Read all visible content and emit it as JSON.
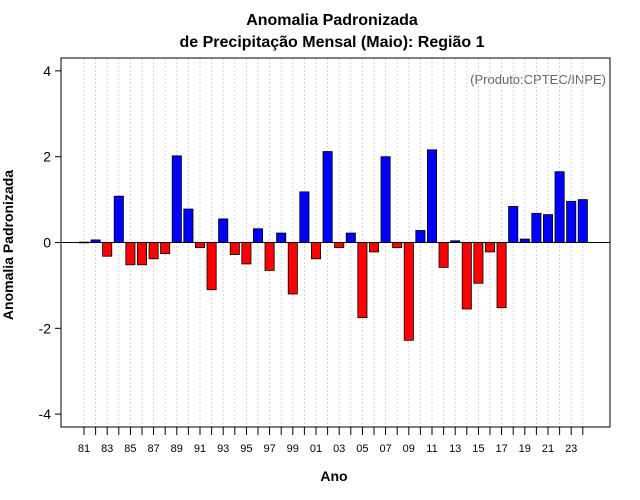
{
  "chart_data": {
    "type": "bar",
    "title": "Anomalia Padronizada",
    "subtitle": "de Precipitação Mensal (Maio): Região 1",
    "xlabel": "Ano",
    "ylabel": "Anomalia Padronizada",
    "annotation": "(Produto:CPTEC/INPE)",
    "ylim": [
      -4.3,
      4.3
    ],
    "yticks": [
      -4,
      -2,
      0,
      2,
      4
    ],
    "ytick_labels": [
      "-4",
      "-2",
      "0",
      "2",
      "4"
    ],
    "xtick_labels": [
      "81",
      "83",
      "85",
      "87",
      "89",
      "91",
      "93",
      "95",
      "97",
      "99",
      "01",
      "03",
      "05",
      "07",
      "09",
      "11",
      "13",
      "15",
      "17",
      "19",
      "21",
      "23"
    ],
    "categories": [
      "1981",
      "1982",
      "1983",
      "1984",
      "1985",
      "1986",
      "1987",
      "1988",
      "1989",
      "1990",
      "1991",
      "1992",
      "1993",
      "1994",
      "1995",
      "1996",
      "1997",
      "1998",
      "1999",
      "2000",
      "2001",
      "2002",
      "2003",
      "2004",
      "2005",
      "2006",
      "2007",
      "2008",
      "2009",
      "2010",
      "2011",
      "2012",
      "2013",
      "2014",
      "2015",
      "2016",
      "2017",
      "2018",
      "2019",
      "2020",
      "2021",
      "2022",
      "2023",
      "2024"
    ],
    "values": [
      0.01,
      0.06,
      -0.32,
      1.08,
      -0.52,
      -0.52,
      -0.38,
      -0.26,
      2.02,
      0.78,
      -0.12,
      -1.1,
      0.55,
      -0.28,
      -0.5,
      0.32,
      -0.65,
      0.22,
      -1.2,
      1.18,
      -0.38,
      2.12,
      -0.12,
      0.22,
      -1.75,
      -0.22,
      2.0,
      -0.12,
      -2.28,
      0.28,
      2.16,
      -0.58,
      0.04,
      -1.55,
      -0.95,
      -0.22,
      -1.52,
      0.84,
      0.08,
      0.68,
      0.65,
      1.65,
      0.96,
      1.0
    ],
    "colors": {
      "positive": "#0000ff",
      "negative": "#ff0000",
      "grid": "#d3d3d3",
      "axis": "#000000"
    },
    "grid": true
  }
}
